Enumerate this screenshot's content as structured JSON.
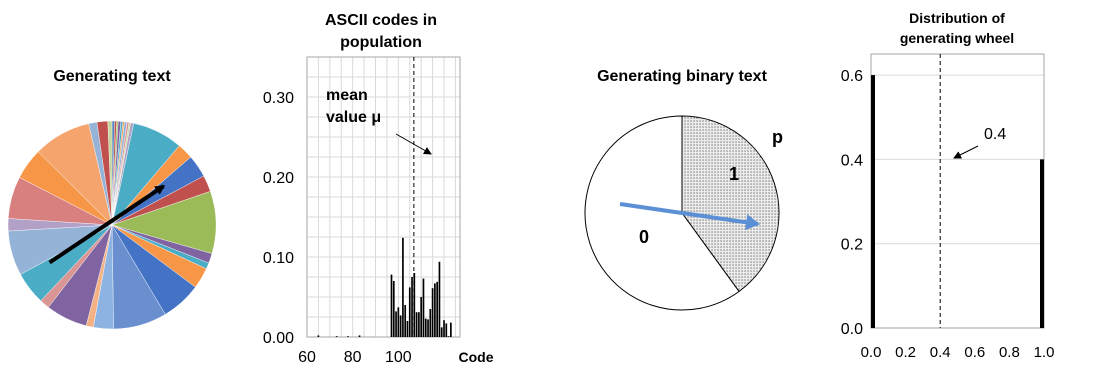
{
  "panels": {
    "pie_text": {
      "title": "Generating text"
    },
    "ascii_hist": {
      "title_line1": "ASCII codes in",
      "title_line2": "population",
      "annotation_line1": "mean",
      "annotation_line2": "value μ"
    },
    "binary_pie": {
      "title": "Generating binary text",
      "label_zero": "0",
      "label_one": "1",
      "label_p": "p"
    },
    "wheel_dist": {
      "title_line1": "Distribution of",
      "title_line2": "generating wheel",
      "annotation": "0.4"
    }
  },
  "chart_data": [
    {
      "type": "pie",
      "title": "Generating text",
      "slice_values": [
        0.5,
        0.4,
        0.3,
        0.5,
        0.4,
        0.3,
        0.5,
        0.4,
        0.3,
        0.6,
        9.8,
        3.1,
        4.4,
        3.2,
        12.1,
        1.9,
        1.2,
        4.1,
        7.8,
        10.4,
        3.9,
        1.4,
        8.1,
        1.9,
        6.4,
        8.7,
        2.4,
        8.2,
        6.1,
        11.2,
        1.6,
        2.1,
        0.8
      ],
      "colors": [
        "#4f81bd",
        "#c0504d",
        "#9bbb59",
        "#8064a2",
        "#4bacc6",
        "#f79646",
        "#95b3d7",
        "#d99694",
        "#c3d69b",
        "#b2a1c7",
        "#4bacc6",
        "#f79646",
        "#4472c4",
        "#c0504d",
        "#9bbb59",
        "#8064a2",
        "#4bacc6",
        "#f79646",
        "#4472c4",
        "#6a8fcf",
        "#8db3e2",
        "#f4b183",
        "#8064a2",
        "#d99694",
        "#4bacc6",
        "#95b3d7",
        "#b2a1c7",
        "#d88080",
        "#f79646",
        "#f4a46c",
        "#95b3d7",
        "#c0504d",
        "#c3d69b"
      ],
      "arrow": {
        "from_angle_deg": -121,
        "to_angle_deg": 53
      }
    },
    {
      "type": "bar",
      "title": "ASCII codes in population",
      "xlabel": "Code",
      "ylabel": "",
      "xlim": [
        60,
        127
      ],
      "ylim": [
        0,
        0.35
      ],
      "xticks": [
        60,
        80,
        100
      ],
      "yticks": [
        "0.00",
        "0.10",
        "0.20",
        "0.30"
      ],
      "grid": true,
      "mean_line_x": 106.8,
      "x": [
        65,
        73,
        78,
        83,
        97,
        98,
        99,
        100,
        101,
        102,
        103,
        104,
        105,
        106,
        107,
        108,
        109,
        110,
        111,
        112,
        113,
        114,
        115,
        116,
        117,
        118,
        119,
        120,
        121,
        122,
        123
      ],
      "values": [
        0.002,
        0.001,
        0.001,
        0.002,
        0.078,
        0.07,
        0.032,
        0.037,
        0.027,
        0.124,
        0.04,
        0.02,
        0.062,
        0.075,
        0.08,
        0.031,
        0.031,
        0.05,
        0.073,
        0.023,
        0.022,
        0.035,
        0.061,
        0.067,
        0.069,
        0.094,
        0.012,
        0.021,
        0.017,
        0.001,
        0.018
      ]
    },
    {
      "type": "pie",
      "title": "Generating binary text",
      "slices": [
        {
          "label": "1",
          "value": 0.4,
          "fill": "dotted-grey"
        },
        {
          "label": "0",
          "value": 0.6,
          "fill": "#ffffff"
        }
      ],
      "annotation": "p"
    },
    {
      "type": "bar",
      "title": "Distribution of generating wheel",
      "xlim": [
        0,
        1
      ],
      "ylim": [
        0,
        0.65
      ],
      "xticks": [
        "0.0",
        "0.2",
        "0.4",
        "0.6",
        "0.8",
        "1.0"
      ],
      "yticks": [
        "0.0",
        "0.2",
        "0.4",
        "0.6"
      ],
      "grid": true,
      "mean_line_x": 0.4,
      "x": [
        0.0,
        1.0
      ],
      "values": [
        0.6,
        0.4
      ],
      "annotation": "0.4"
    }
  ]
}
